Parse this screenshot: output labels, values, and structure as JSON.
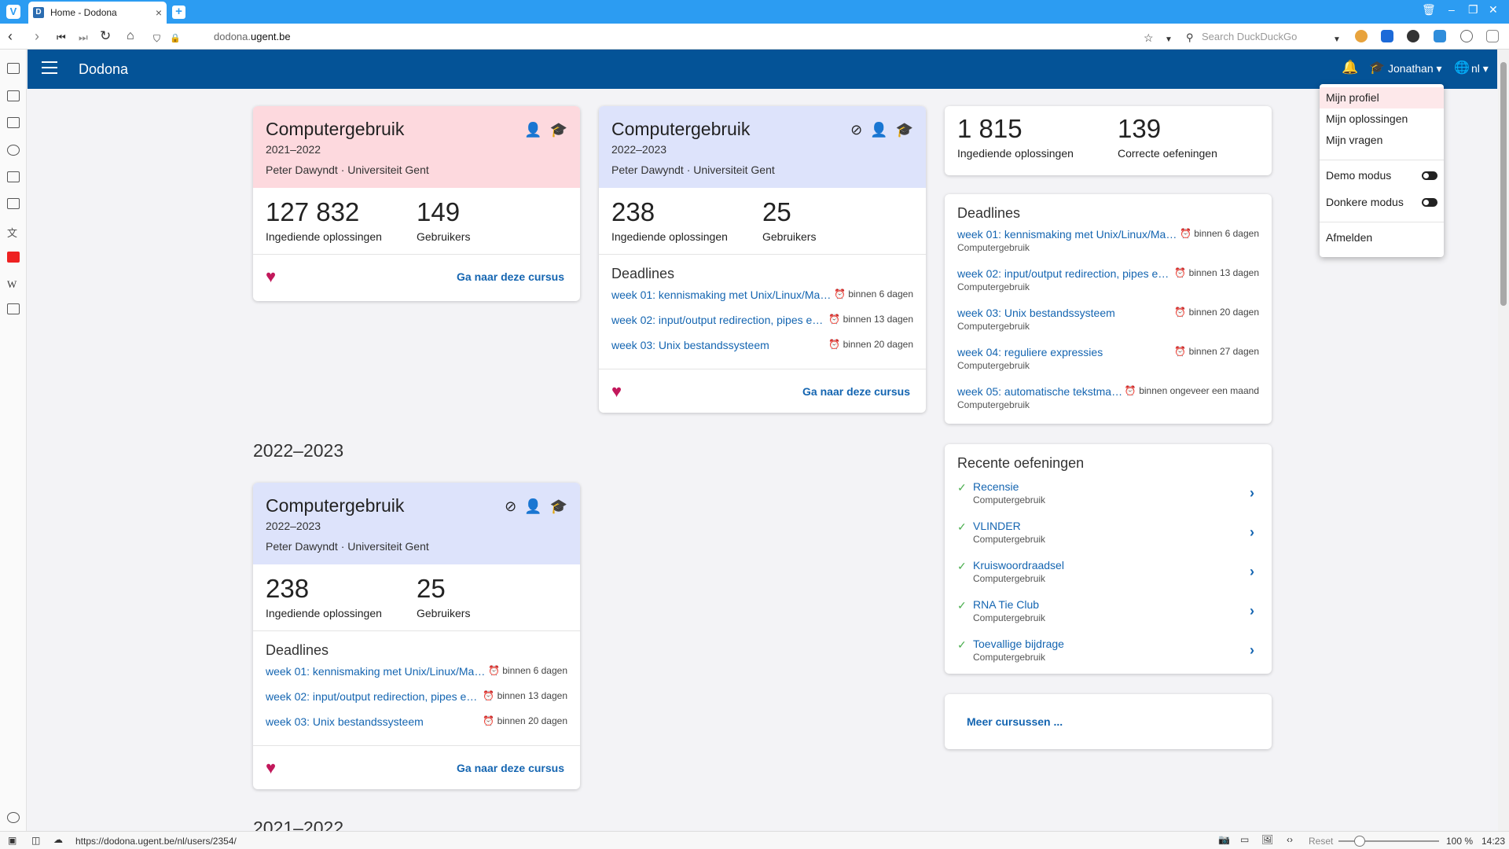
{
  "browser": {
    "tab_title": "Home - Dodona",
    "tab_favicon": "D",
    "url_prefix": "dodona.",
    "url_domain": "ugent.be",
    "search_placeholder": "Search DuckDuckGo",
    "status_url": "https://dodona.ugent.be/nl/users/2354/",
    "zoom_reset": "Reset",
    "zoom": "100 %",
    "time": "14:23",
    "accent": "#2c9cf2"
  },
  "header": {
    "brand": "Dodona",
    "user": "Jonathan",
    "lang": "nl",
    "color": "#045397"
  },
  "menu": {
    "items": [
      "Mijn profiel",
      "Mijn oplossingen",
      "Mijn vragen"
    ],
    "demo": "Demo modus",
    "dark": "Donkere modus",
    "logout": "Afmelden"
  },
  "cards": [
    {
      "title": "Computergebruik",
      "year": "2021–2022",
      "teacher": "Peter Dawyndt · Universiteit Gent",
      "stat1": "127 832",
      "stat1_label": "Ingediende oplossingen",
      "stat2": "149",
      "stat2_label": "Gebruikers",
      "link": "Ga naar deze cursus",
      "color": "#fdd9de"
    },
    {
      "title": "Computergebruik",
      "year": "2022–2023",
      "teacher": "Peter Dawyndt · Universiteit Gent",
      "stat1": "238",
      "stat1_label": "Ingediende oplossingen",
      "stat2": "25",
      "stat2_label": "Gebruikers",
      "deadlines_title": "Deadlines",
      "deadlines": [
        {
          "name": "week 01: kennismaking met Unix/Linux/Mac...",
          "when": "binnen 6 dagen"
        },
        {
          "name": "week 02: input/output redirection, pipes en ...",
          "when": "binnen 13 dagen"
        },
        {
          "name": "week 03: Unix bestandssysteem",
          "when": "binnen 20 dagen"
        }
      ],
      "link": "Ga naar deze cursus",
      "color": "#dde3fb"
    },
    {
      "title": "Computergebruik",
      "year": "2022–2023",
      "teacher": "Peter Dawyndt · Universiteit Gent",
      "stat1": "238",
      "stat1_label": "Ingediende oplossingen",
      "stat2": "25",
      "stat2_label": "Gebruikers",
      "deadlines_title": "Deadlines",
      "deadlines": [
        {
          "name": "week 01: kennismaking met Unix/Linux/Mac...",
          "when": "binnen 6 dagen"
        },
        {
          "name": "week 02: input/output redirection, pipes en ...",
          "when": "binnen 13 dagen"
        },
        {
          "name": "week 03: Unix bestandssysteem",
          "when": "binnen 20 dagen"
        }
      ],
      "link": "Ga naar deze cursus",
      "color": "#dde3fb"
    }
  ],
  "year_headings": [
    "2022–2023",
    "2021–2022"
  ],
  "summary": {
    "stat1": "1 815",
    "stat1_label": "Ingediende oplossingen",
    "stat2": "139",
    "stat2_label": "Correcte oefeningen"
  },
  "right_deadlines": {
    "title": "Deadlines",
    "items": [
      {
        "name": "week 01: kennismaking met Unix/Linux/Mac...",
        "when": "binnen 6 dagen",
        "course": "Computergebruik"
      },
      {
        "name": "week 02: input/output redirection, pipes en ...",
        "when": "binnen 13 dagen",
        "course": "Computergebruik"
      },
      {
        "name": "week 03: Unix bestandssysteem",
        "when": "binnen 20 dagen",
        "course": "Computergebruik"
      },
      {
        "name": "week 04: reguliere expressies",
        "when": "binnen 27 dagen",
        "course": "Computergebruik"
      },
      {
        "name": "week 05: automatische tekstman...",
        "when": "binnen ongeveer een maand",
        "course": "Computergebruik"
      }
    ]
  },
  "recent": {
    "title": "Recente oefeningen",
    "items": [
      {
        "name": "Recensie",
        "course": "Computergebruik"
      },
      {
        "name": "VLINDER",
        "course": "Computergebruik"
      },
      {
        "name": "Kruiswoordraadsel",
        "course": "Computergebruik"
      },
      {
        "name": "RNA Tie Club",
        "course": "Computergebruik"
      },
      {
        "name": "Toevallige bijdrage",
        "course": "Computergebruik"
      }
    ]
  },
  "more_courses": "Meer cursussen ..."
}
